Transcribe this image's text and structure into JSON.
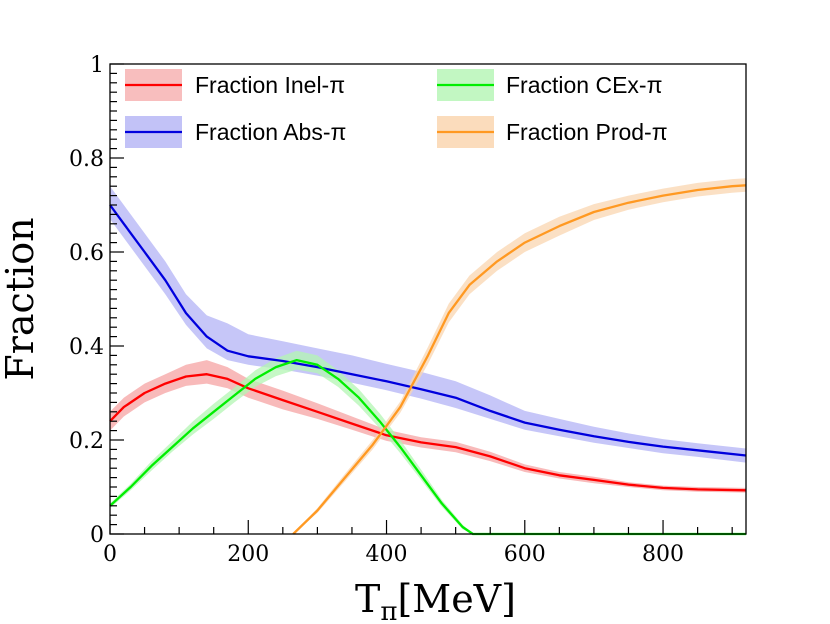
{
  "chart_data": {
    "type": "line",
    "title": "",
    "xlabel_main": "T",
    "xlabel_sub": "π",
    "xlabel_unit": "[MeV]",
    "ylabel": "Fraction",
    "xlim": [
      0,
      920
    ],
    "ylim": [
      0,
      1
    ],
    "x_ticks": [
      0,
      200,
      400,
      600,
      800
    ],
    "x_tick_labels": [
      "0",
      "200",
      "400",
      "600",
      "800"
    ],
    "y_ticks": [
      0,
      0.2,
      0.4,
      0.6,
      0.8,
      1
    ],
    "y_tick_labels": [
      "0",
      "0.2",
      "0.4",
      "0.6",
      "0.8",
      "1"
    ],
    "legend_position": "top",
    "series": [
      {
        "name": "Fraction Inel-π",
        "color": "#ff0000",
        "band_color": "#f5a3a3",
        "points": [
          [
            0,
            0.24
          ],
          [
            20,
            0.27
          ],
          [
            50,
            0.3
          ],
          [
            80,
            0.32
          ],
          [
            110,
            0.335
          ],
          [
            140,
            0.34
          ],
          [
            170,
            0.33
          ],
          [
            200,
            0.31
          ],
          [
            250,
            0.285
          ],
          [
            300,
            0.26
          ],
          [
            350,
            0.235
          ],
          [
            400,
            0.21
          ],
          [
            450,
            0.195
          ],
          [
            500,
            0.185
          ],
          [
            550,
            0.165
          ],
          [
            600,
            0.14
          ],
          [
            650,
            0.125
          ],
          [
            700,
            0.115
          ],
          [
            750,
            0.105
          ],
          [
            800,
            0.098
          ],
          [
            850,
            0.095
          ],
          [
            920,
            0.093
          ]
        ],
        "band_lo": [
          [
            0,
            0.22
          ],
          [
            20,
            0.25
          ],
          [
            50,
            0.28
          ],
          [
            80,
            0.3
          ],
          [
            110,
            0.315
          ],
          [
            140,
            0.32
          ],
          [
            170,
            0.31
          ],
          [
            200,
            0.29
          ],
          [
            250,
            0.265
          ],
          [
            300,
            0.245
          ],
          [
            350,
            0.222
          ],
          [
            400,
            0.198
          ],
          [
            450,
            0.184
          ],
          [
            500,
            0.174
          ],
          [
            550,
            0.155
          ],
          [
            600,
            0.132
          ],
          [
            650,
            0.118
          ],
          [
            700,
            0.108
          ],
          [
            750,
            0.1
          ],
          [
            800,
            0.093
          ],
          [
            850,
            0.09
          ],
          [
            920,
            0.088
          ]
        ],
        "band_hi": [
          [
            0,
            0.26
          ],
          [
            20,
            0.29
          ],
          [
            50,
            0.32
          ],
          [
            80,
            0.34
          ],
          [
            110,
            0.36
          ],
          [
            140,
            0.37
          ],
          [
            170,
            0.355
          ],
          [
            200,
            0.33
          ],
          [
            250,
            0.305
          ],
          [
            300,
            0.278
          ],
          [
            350,
            0.25
          ],
          [
            400,
            0.222
          ],
          [
            450,
            0.206
          ],
          [
            500,
            0.196
          ],
          [
            550,
            0.175
          ],
          [
            600,
            0.148
          ],
          [
            650,
            0.132
          ],
          [
            700,
            0.122
          ],
          [
            750,
            0.11
          ],
          [
            800,
            0.103
          ],
          [
            850,
            0.1
          ],
          [
            920,
            0.098
          ]
        ]
      },
      {
        "name": "Fraction Abs-π",
        "color": "#0000dd",
        "band_color": "#b3b3f5",
        "points": [
          [
            0,
            0.7
          ],
          [
            20,
            0.66
          ],
          [
            50,
            0.6
          ],
          [
            80,
            0.54
          ],
          [
            110,
            0.47
          ],
          [
            140,
            0.42
          ],
          [
            170,
            0.39
          ],
          [
            200,
            0.378
          ],
          [
            250,
            0.368
          ],
          [
            300,
            0.355
          ],
          [
            350,
            0.34
          ],
          [
            400,
            0.325
          ],
          [
            450,
            0.308
          ],
          [
            500,
            0.29
          ],
          [
            550,
            0.262
          ],
          [
            600,
            0.237
          ],
          [
            650,
            0.222
          ],
          [
            700,
            0.208
          ],
          [
            750,
            0.196
          ],
          [
            800,
            0.186
          ],
          [
            850,
            0.178
          ],
          [
            920,
            0.167
          ]
        ],
        "band_lo": [
          [
            0,
            0.67
          ],
          [
            20,
            0.63
          ],
          [
            50,
            0.57
          ],
          [
            80,
            0.51
          ],
          [
            110,
            0.445
          ],
          [
            140,
            0.395
          ],
          [
            170,
            0.37
          ],
          [
            200,
            0.36
          ],
          [
            250,
            0.35
          ],
          [
            300,
            0.337
          ],
          [
            350,
            0.322
          ],
          [
            400,
            0.306
          ],
          [
            450,
            0.288
          ],
          [
            500,
            0.268
          ],
          [
            550,
            0.245
          ],
          [
            600,
            0.222
          ],
          [
            650,
            0.208
          ],
          [
            700,
            0.194
          ],
          [
            750,
            0.183
          ],
          [
            800,
            0.172
          ],
          [
            850,
            0.164
          ],
          [
            920,
            0.152
          ]
        ],
        "band_hi": [
          [
            0,
            0.74
          ],
          [
            20,
            0.7
          ],
          [
            50,
            0.64
          ],
          [
            80,
            0.58
          ],
          [
            110,
            0.51
          ],
          [
            140,
            0.465
          ],
          [
            170,
            0.448
          ],
          [
            200,
            0.425
          ],
          [
            250,
            0.41
          ],
          [
            300,
            0.395
          ],
          [
            350,
            0.38
          ],
          [
            400,
            0.362
          ],
          [
            450,
            0.345
          ],
          [
            500,
            0.325
          ],
          [
            550,
            0.295
          ],
          [
            600,
            0.262
          ],
          [
            650,
            0.245
          ],
          [
            700,
            0.228
          ],
          [
            750,
            0.214
          ],
          [
            800,
            0.202
          ],
          [
            850,
            0.193
          ],
          [
            920,
            0.182
          ]
        ]
      },
      {
        "name": "Fraction CEx-π",
        "color": "#00ee00",
        "band_color": "#b3f5b3",
        "points": [
          [
            0,
            0.06
          ],
          [
            30,
            0.1
          ],
          [
            60,
            0.145
          ],
          [
            90,
            0.185
          ],
          [
            120,
            0.225
          ],
          [
            150,
            0.26
          ],
          [
            180,
            0.295
          ],
          [
            210,
            0.33
          ],
          [
            240,
            0.355
          ],
          [
            270,
            0.37
          ],
          [
            300,
            0.36
          ],
          [
            330,
            0.33
          ],
          [
            360,
            0.29
          ],
          [
            390,
            0.24
          ],
          [
            420,
            0.185
          ],
          [
            450,
            0.125
          ],
          [
            480,
            0.065
          ],
          [
            510,
            0.015
          ],
          [
            525,
            0.0
          ],
          [
            660,
            0.0
          ],
          [
            920,
            0.0
          ]
        ],
        "band_lo": [
          [
            0,
            0.055
          ],
          [
            30,
            0.093
          ],
          [
            60,
            0.135
          ],
          [
            90,
            0.175
          ],
          [
            120,
            0.212
          ],
          [
            150,
            0.245
          ],
          [
            180,
            0.28
          ],
          [
            210,
            0.313
          ],
          [
            240,
            0.336
          ],
          [
            270,
            0.35
          ],
          [
            300,
            0.342
          ],
          [
            330,
            0.313
          ],
          [
            360,
            0.273
          ],
          [
            390,
            0.225
          ],
          [
            420,
            0.172
          ],
          [
            450,
            0.115
          ],
          [
            480,
            0.058
          ],
          [
            510,
            0.01
          ],
          [
            525,
            0.0
          ],
          [
            660,
            0.0
          ],
          [
            920,
            0.0
          ]
        ],
        "band_hi": [
          [
            0,
            0.065
          ],
          [
            30,
            0.107
          ],
          [
            60,
            0.155
          ],
          [
            90,
            0.197
          ],
          [
            120,
            0.24
          ],
          [
            150,
            0.277
          ],
          [
            180,
            0.312
          ],
          [
            210,
            0.348
          ],
          [
            240,
            0.374
          ],
          [
            270,
            0.39
          ],
          [
            300,
            0.38
          ],
          [
            330,
            0.348
          ],
          [
            360,
            0.308
          ],
          [
            390,
            0.257
          ],
          [
            420,
            0.2
          ],
          [
            450,
            0.137
          ],
          [
            480,
            0.073
          ],
          [
            510,
            0.02
          ],
          [
            525,
            0.0
          ],
          [
            660,
            0.0
          ],
          [
            920,
            0.0
          ]
        ]
      },
      {
        "name": "Fraction Prod-π",
        "color": "#ff9922",
        "band_color": "#fad6b0",
        "points": [
          [
            265,
            0.0
          ],
          [
            300,
            0.05
          ],
          [
            340,
            0.12
          ],
          [
            380,
            0.19
          ],
          [
            420,
            0.27
          ],
          [
            460,
            0.38
          ],
          [
            490,
            0.47
          ],
          [
            520,
            0.53
          ],
          [
            560,
            0.58
          ],
          [
            600,
            0.62
          ],
          [
            650,
            0.655
          ],
          [
            700,
            0.685
          ],
          [
            750,
            0.705
          ],
          [
            800,
            0.72
          ],
          [
            850,
            0.732
          ],
          [
            900,
            0.74
          ],
          [
            920,
            0.742
          ]
        ],
        "band_lo": [
          [
            265,
            0.0
          ],
          [
            300,
            0.045
          ],
          [
            340,
            0.112
          ],
          [
            380,
            0.18
          ],
          [
            420,
            0.258
          ],
          [
            460,
            0.362
          ],
          [
            490,
            0.45
          ],
          [
            520,
            0.51
          ],
          [
            560,
            0.56
          ],
          [
            600,
            0.6
          ],
          [
            650,
            0.635
          ],
          [
            700,
            0.668
          ],
          [
            750,
            0.69
          ],
          [
            800,
            0.706
          ],
          [
            850,
            0.718
          ],
          [
            900,
            0.726
          ],
          [
            920,
            0.728
          ]
        ],
        "band_hi": [
          [
            265,
            0.0
          ],
          [
            300,
            0.055
          ],
          [
            340,
            0.128
          ],
          [
            380,
            0.2
          ],
          [
            420,
            0.282
          ],
          [
            460,
            0.398
          ],
          [
            490,
            0.49
          ],
          [
            520,
            0.55
          ],
          [
            560,
            0.6
          ],
          [
            600,
            0.64
          ],
          [
            650,
            0.675
          ],
          [
            700,
            0.702
          ],
          [
            750,
            0.72
          ],
          [
            800,
            0.735
          ],
          [
            850,
            0.747
          ],
          [
            900,
            0.755
          ],
          [
            920,
            0.757
          ]
        ]
      }
    ]
  }
}
